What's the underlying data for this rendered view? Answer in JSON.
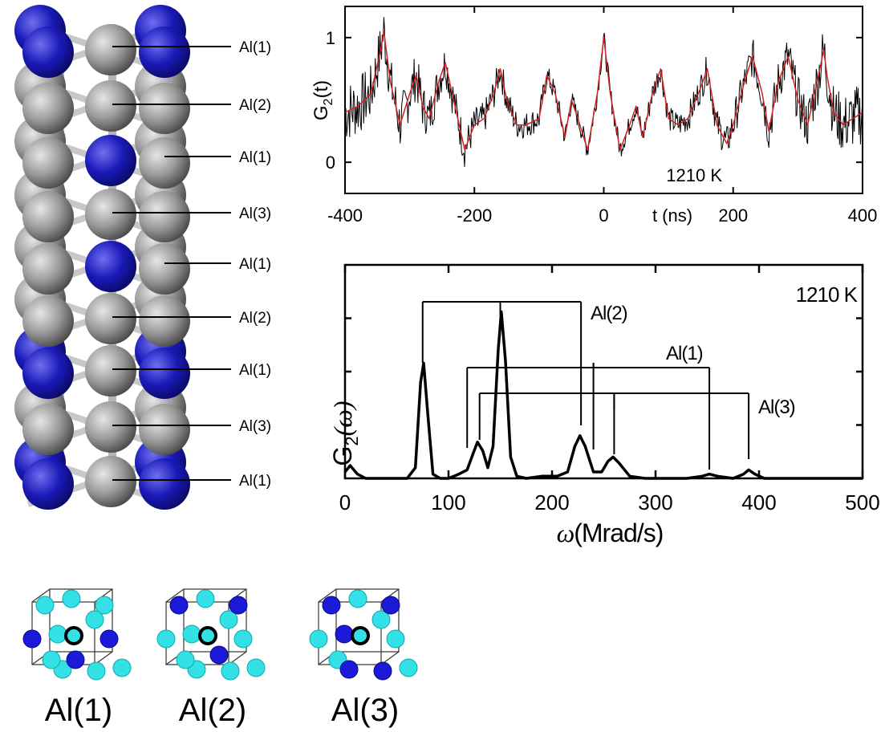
{
  "structure": {
    "site_labels": [
      "Al(1)",
      "Al(2)",
      "Al(1)",
      "Al(3)",
      "Al(1)",
      "Al(2)",
      "Al(1)",
      "Al(3)",
      "Al(1)"
    ]
  },
  "cells": {
    "labels": [
      "Al(1)",
      "Al(2)",
      "Al(3)"
    ]
  },
  "colors": {
    "blue_atom": "#1a1aa8",
    "gray_atom": "#8c8c8c",
    "cyan_atom": "#33e0e0",
    "dark_blue_atom": "#1a1ad0",
    "fit_line": "#d42020",
    "data_line": "#000000"
  },
  "chart_data": [
    {
      "type": "line",
      "xlabel": "t (ns)",
      "ylabel": "G2(t)",
      "ylabel_main": "G",
      "ylabel_sub": "2",
      "ylabel_tail": "(t)",
      "annotation": "1210 K",
      "xlim": [
        -400,
        400
      ],
      "ylim": [
        -0.25,
        1.25
      ],
      "xticks": [
        -400,
        -200,
        0,
        200,
        400
      ],
      "yticks": [
        0,
        1
      ],
      "series": [
        {
          "x": [
            -400,
            -380,
            -360,
            -345,
            -340,
            -330,
            -315,
            -300,
            -290,
            -280,
            -270,
            -255,
            -245,
            -230,
            -215,
            -200,
            -185,
            -170,
            -160,
            -150,
            -135,
            -120,
            -100,
            -88,
            -75,
            -60,
            -50,
            -40,
            -25,
            -10,
            0,
            10,
            25,
            40,
            50,
            60,
            75,
            88,
            100,
            115,
            130,
            150,
            160,
            175,
            190,
            200,
            215,
            230,
            245,
            255,
            270,
            285,
            300,
            315,
            330,
            340,
            345,
            355,
            370,
            385,
            400
          ],
          "values": [
            0.4,
            0.45,
            0.55,
            0.9,
            1.05,
            0.65,
            0.3,
            0.55,
            0.7,
            0.45,
            0.35,
            0.65,
            0.8,
            0.45,
            0.1,
            0.3,
            0.35,
            0.55,
            0.75,
            0.5,
            0.3,
            0.3,
            0.35,
            0.7,
            0.55,
            0.2,
            0.5,
            0.35,
            0.1,
            0.55,
            1.0,
            0.55,
            0.1,
            0.3,
            0.45,
            0.2,
            0.55,
            0.75,
            0.35,
            0.3,
            0.35,
            0.6,
            0.75,
            0.3,
            0.15,
            0.3,
            0.6,
            0.85,
            0.55,
            0.25,
            0.65,
            0.85,
            0.5,
            0.3,
            0.65,
            0.9,
            0.7,
            0.4,
            0.3,
            0.35,
            0.4
          ]
        }
      ]
    },
    {
      "type": "line",
      "xlabel": "ω(Mrad/s)",
      "xlabel_omega": "ω",
      "xlabel_rest": "(Mrad/s)",
      "ylabel": "G2(ω)",
      "ylabel_main": "G",
      "ylabel_sub": "2",
      "ylabel_tail": "(ω)",
      "annotation": "1210 K",
      "xlim": [
        0,
        500
      ],
      "ylim": [
        0,
        1
      ],
      "xticks": [
        0,
        100,
        200,
        300,
        400,
        500
      ],
      "series": [
        {
          "x": [
            0,
            5,
            12,
            20,
            40,
            60,
            68,
            73,
            76,
            80,
            85,
            92,
            100,
            110,
            118,
            124,
            128,
            133,
            138,
            143,
            148,
            151,
            155,
            160,
            166,
            175,
            190,
            205,
            215,
            222,
            227,
            232,
            240,
            248,
            254,
            259,
            265,
            275,
            290,
            310,
            330,
            345,
            352,
            360,
            375,
            385,
            390,
            396,
            405,
            430,
            460,
            480,
            500
          ],
          "values": [
            0.03,
            0.06,
            0.02,
            0.0,
            0.0,
            0.0,
            0.05,
            0.45,
            0.54,
            0.3,
            0.02,
            0.0,
            0.0,
            0.02,
            0.04,
            0.12,
            0.17,
            0.13,
            0.05,
            0.15,
            0.6,
            0.78,
            0.55,
            0.1,
            0.01,
            0.0,
            0.01,
            0.01,
            0.03,
            0.15,
            0.2,
            0.15,
            0.03,
            0.03,
            0.08,
            0.1,
            0.07,
            0.01,
            0.0,
            0.0,
            0.0,
            0.01,
            0.02,
            0.01,
            0.0,
            0.02,
            0.04,
            0.02,
            0.0,
            0.0,
            0.0,
            0.0,
            0.0
          ]
        }
      ],
      "brackets": [
        {
          "label": "Al(2)",
          "center": 150,
          "feet": [
            75,
            228
          ]
        },
        {
          "label": "Al(1)",
          "center": 240,
          "feet": [
            118,
            352
          ]
        },
        {
          "label": "Al(3)",
          "center": 260,
          "feet": [
            130,
            390
          ]
        }
      ]
    }
  ]
}
